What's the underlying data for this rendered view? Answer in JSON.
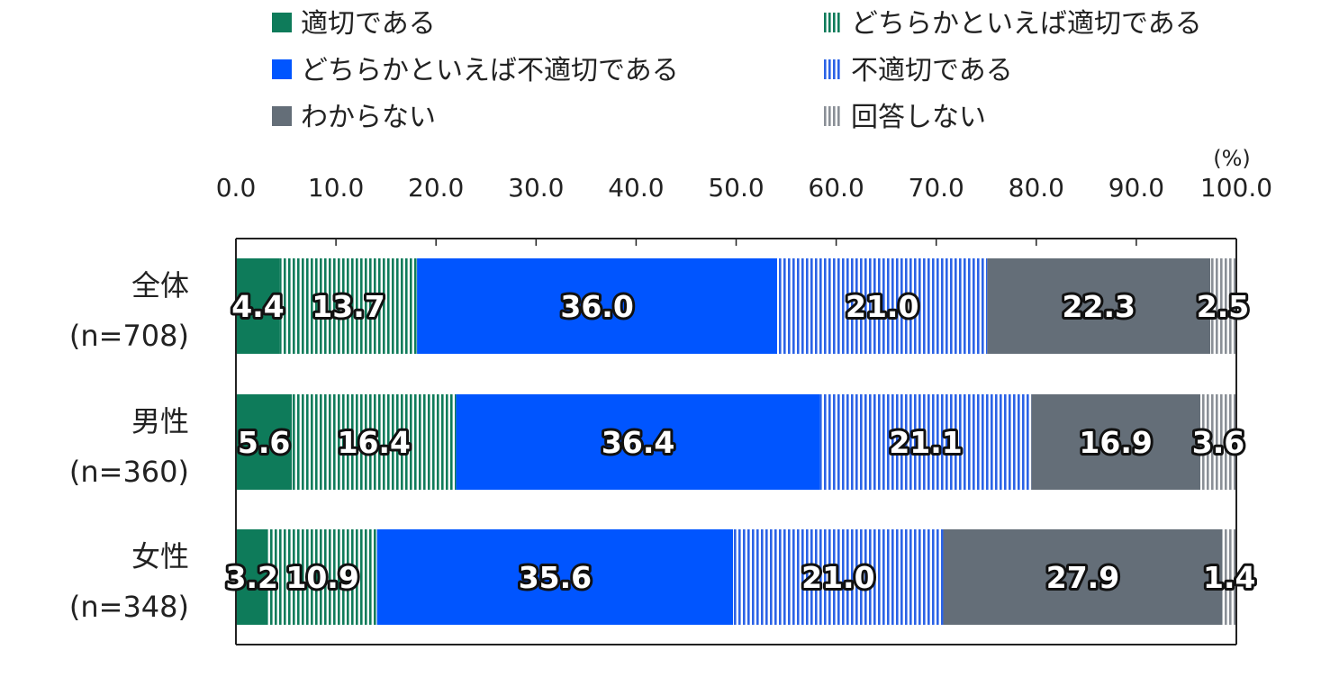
{
  "chart_data": {
    "type": "bar",
    "orientation": "horizontal",
    "stacked": true,
    "unit_label": "(%)",
    "xlim": [
      0,
      100
    ],
    "x_ticks": [
      "0.0",
      "10.0",
      "20.0",
      "30.0",
      "40.0",
      "50.0",
      "60.0",
      "70.0",
      "80.0",
      "90.0",
      "100.0"
    ],
    "categories": [
      {
        "name": "全体",
        "n": "(n=708)"
      },
      {
        "name": "男性",
        "n": "(n=360)"
      },
      {
        "name": "女性",
        "n": "(n=348)"
      }
    ],
    "series": [
      {
        "name": "適切である",
        "color": "#0e7b5a",
        "pattern": "solid",
        "values": [
          4.4,
          5.6,
          3.2
        ]
      },
      {
        "name": "どちらかといえば適切である",
        "color": "#0e7b5a",
        "pattern": "stripes",
        "values": [
          13.7,
          16.4,
          10.9
        ]
      },
      {
        "name": "どちらかといえば不適切である",
        "color": "#0055ff",
        "pattern": "solid",
        "values": [
          36.0,
          36.4,
          35.6
        ]
      },
      {
        "name": "不適切である",
        "color": "#2a62e6",
        "pattern": "stripes",
        "values": [
          21.0,
          21.1,
          21.0
        ]
      },
      {
        "name": "わからない",
        "color": "#646e78",
        "pattern": "solid",
        "values": [
          22.3,
          16.9,
          27.9
        ]
      },
      {
        "name": "回答しない",
        "color": "#8a8f96",
        "pattern": "stripes",
        "values": [
          2.5,
          3.6,
          1.4
        ]
      }
    ],
    "legend_position": "top",
    "grid": false
  }
}
